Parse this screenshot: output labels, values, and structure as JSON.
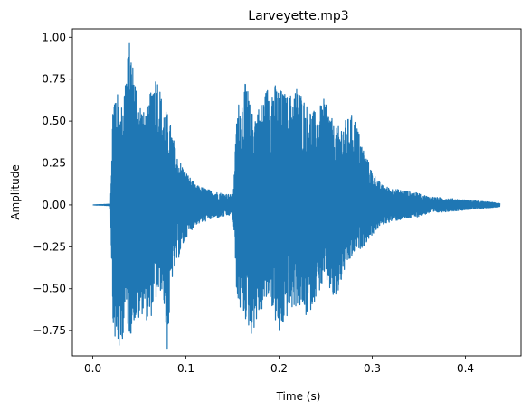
{
  "chart_data": {
    "type": "line",
    "title": "Larveyette.mp3",
    "xlabel": "Time (s)",
    "ylabel": "Amplitude",
    "xlim": [
      -0.0219,
      0.4597
    ],
    "ylim": [
      -0.9,
      1.05
    ],
    "x_ticks": [
      0.0,
      0.1,
      0.2,
      0.3,
      0.4
    ],
    "x_tick_labels": [
      "0.0",
      "0.1",
      "0.2",
      "0.3",
      "0.4"
    ],
    "y_ticks": [
      -0.75,
      -0.5,
      -0.25,
      0.0,
      0.25,
      0.5,
      0.75,
      1.0
    ],
    "y_tick_labels": [
      "−0.75",
      "−0.50",
      "−0.25",
      "0.00",
      "0.25",
      "0.50",
      "0.75",
      "1.00"
    ],
    "grid": false,
    "series": [
      {
        "color": "#1f77b4",
        "envelope": {
          "x": [
            0.0,
            0.019,
            0.02,
            0.022,
            0.025,
            0.03,
            0.035,
            0.04,
            0.043,
            0.05,
            0.055,
            0.06,
            0.065,
            0.07,
            0.075,
            0.08,
            0.085,
            0.09,
            0.1,
            0.11,
            0.12,
            0.13,
            0.14,
            0.15,
            0.152,
            0.155,
            0.16,
            0.165,
            0.17,
            0.18,
            0.19,
            0.2,
            0.21,
            0.22,
            0.23,
            0.24,
            0.25,
            0.26,
            0.27,
            0.28,
            0.29,
            0.3,
            0.31,
            0.32,
            0.33,
            0.34,
            0.35,
            0.36,
            0.37,
            0.38,
            0.39,
            0.4,
            0.41,
            0.42,
            0.43,
            0.437
          ],
          "upper": [
            0.0,
            0.005,
            0.3,
            0.7,
            0.72,
            0.55,
            0.8,
            1.0,
            0.85,
            0.65,
            0.55,
            0.6,
            0.8,
            0.78,
            0.6,
            0.55,
            0.45,
            0.3,
            0.2,
            0.12,
            0.1,
            0.08,
            0.07,
            0.06,
            0.2,
            0.6,
            0.65,
            0.75,
            0.55,
            0.6,
            0.75,
            0.7,
            0.65,
            0.72,
            0.6,
            0.55,
            0.65,
            0.45,
            0.5,
            0.55,
            0.35,
            0.2,
            0.12,
            0.1,
            0.09,
            0.08,
            0.07,
            0.05,
            0.045,
            0.04,
            0.035,
            0.03,
            0.025,
            0.02,
            0.015,
            0.01
          ],
          "lower": [
            0.0,
            -0.005,
            -0.3,
            -0.75,
            -0.85,
            -0.9,
            -0.65,
            -0.8,
            -0.7,
            -0.7,
            -0.62,
            -0.75,
            -0.6,
            -0.55,
            -0.5,
            -0.88,
            -0.45,
            -0.35,
            -0.2,
            -0.12,
            -0.1,
            -0.08,
            -0.07,
            -0.06,
            -0.2,
            -0.6,
            -0.65,
            -0.7,
            -0.78,
            -0.65,
            -0.55,
            -0.8,
            -0.65,
            -0.6,
            -0.68,
            -0.55,
            -0.45,
            -0.6,
            -0.4,
            -0.3,
            -0.25,
            -0.18,
            -0.12,
            -0.1,
            -0.09,
            -0.08,
            -0.07,
            -0.05,
            -0.045,
            -0.04,
            -0.035,
            -0.03,
            -0.025,
            -0.02,
            -0.015,
            -0.01
          ]
        }
      }
    ]
  }
}
